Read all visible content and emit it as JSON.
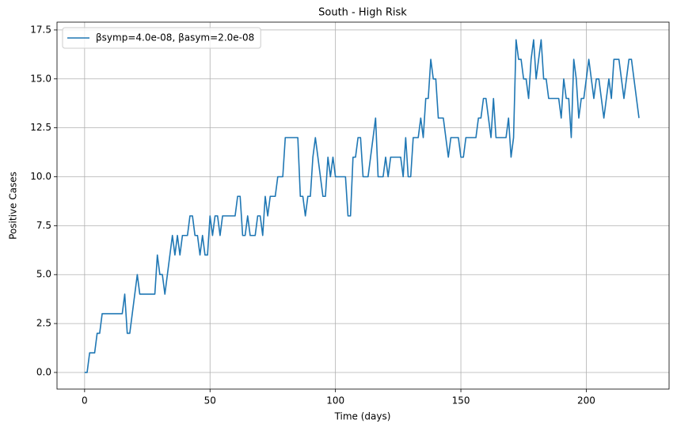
{
  "chart_data": {
    "type": "line",
    "title": "South - High Risk",
    "xlabel": "Time (days)",
    "ylabel": "Positive Cases",
    "x": [
      0,
      1,
      2,
      3,
      4,
      5,
      6,
      7,
      8,
      9,
      10,
      11,
      12,
      13,
      14,
      15,
      16,
      17,
      18,
      19,
      20,
      21,
      22,
      23,
      24,
      25,
      26,
      27,
      28,
      29,
      30,
      31,
      32,
      33,
      34,
      35,
      36,
      37,
      38,
      39,
      40,
      41,
      42,
      43,
      44,
      45,
      46,
      47,
      48,
      49,
      50,
      51,
      52,
      53,
      54,
      55,
      56,
      57,
      58,
      59,
      60,
      61,
      62,
      63,
      64,
      65,
      66,
      67,
      68,
      69,
      70,
      71,
      72,
      73,
      74,
      75,
      76,
      77,
      78,
      79,
      80,
      81,
      82,
      83,
      84,
      85,
      86,
      87,
      88,
      89,
      90,
      91,
      92,
      93,
      94,
      95,
      96,
      97,
      98,
      99,
      100,
      101,
      102,
      103,
      104,
      105,
      106,
      107,
      108,
      109,
      110,
      111,
      112,
      113,
      114,
      115,
      116,
      117,
      118,
      119,
      120,
      121,
      122,
      123,
      124,
      125,
      126,
      127,
      128,
      129,
      130,
      131,
      132,
      133,
      134,
      135,
      136,
      137,
      138,
      139,
      140,
      141,
      142,
      143,
      144,
      145,
      146,
      147,
      148,
      149,
      150,
      151,
      152,
      153,
      154,
      155,
      156,
      157,
      158,
      159,
      160,
      161,
      162,
      163,
      164,
      165,
      166,
      167,
      168,
      169,
      170,
      171,
      172,
      173,
      174,
      175,
      176,
      177,
      178,
      179,
      180,
      181,
      182,
      183,
      184,
      185,
      186,
      187,
      188,
      189,
      190,
      191,
      192,
      193,
      194,
      195,
      196,
      197,
      198,
      199,
      200,
      201,
      202,
      203,
      204,
      205,
      206,
      207,
      208,
      209,
      210,
      211,
      212,
      213,
      214,
      215,
      216,
      217,
      218,
      219,
      220,
      221
    ],
    "series": [
      {
        "name": "βsymp=4.0e-08, βasym=2.0e-08",
        "color": "#1f77b4",
        "values": [
          0,
          0,
          1,
          1,
          1,
          2,
          2,
          3,
          3,
          3,
          3,
          3,
          3,
          3,
          3,
          3,
          4,
          2,
          2,
          3,
          4,
          5,
          4,
          4,
          4,
          4,
          4,
          4,
          4,
          6,
          5,
          5,
          4,
          5,
          6,
          7,
          6,
          7,
          6,
          7,
          7,
          7,
          8,
          8,
          7,
          7,
          6,
          7,
          6,
          6,
          8,
          7,
          8,
          8,
          7,
          8,
          8,
          8,
          8,
          8,
          8,
          9,
          9,
          7,
          7,
          8,
          7,
          7,
          7,
          8,
          8,
          7,
          9,
          8,
          9,
          9,
          9,
          10,
          10,
          10,
          12,
          12,
          12,
          12,
          12,
          12,
          9,
          9,
          8,
          9,
          9,
          11,
          12,
          11,
          10,
          9,
          9,
          11,
          10,
          11,
          10,
          10,
          10,
          10,
          10,
          8,
          8,
          11,
          11,
          12,
          12,
          10,
          10,
          10,
          11,
          12,
          13,
          10,
          10,
          10,
          11,
          10,
          11,
          11,
          11,
          11,
          11,
          10,
          12,
          10,
          10,
          12,
          12,
          12,
          13,
          12,
          14,
          14,
          16,
          15,
          15,
          13,
          13,
          13,
          12,
          11,
          12,
          12,
          12,
          12,
          11,
          11,
          12,
          12,
          12,
          12,
          12,
          13,
          13,
          14,
          14,
          13,
          12,
          14,
          12,
          12,
          12,
          12,
          12,
          13,
          11,
          12,
          17,
          16,
          16,
          15,
          15,
          14,
          16,
          17,
          15,
          16,
          17,
          15,
          15,
          14,
          14,
          14,
          14,
          14,
          13,
          15,
          14,
          14,
          12,
          16,
          15,
          13,
          14,
          14,
          15,
          16,
          15,
          14,
          15,
          15,
          14,
          13,
          14,
          15,
          14,
          16,
          16,
          16,
          15,
          14,
          15,
          16,
          16,
          15,
          14,
          13
        ]
      }
    ],
    "xlim": [
      -11,
      233
    ],
    "xticks": [
      0,
      50,
      100,
      150,
      200
    ],
    "ylim": [
      -0.85,
      17.9
    ],
    "yticks": [
      {
        "value": 0,
        "label": "0.0"
      },
      {
        "value": 2.5,
        "label": "2.5"
      },
      {
        "value": 5,
        "label": "5.0"
      },
      {
        "value": 7.5,
        "label": "7.5"
      },
      {
        "value": 10,
        "label": "10.0"
      },
      {
        "value": 12.5,
        "label": "12.5"
      },
      {
        "value": 15,
        "label": "15.0"
      },
      {
        "value": 17.5,
        "label": "17.5"
      }
    ],
    "grid": true,
    "legend": "upper left"
  }
}
